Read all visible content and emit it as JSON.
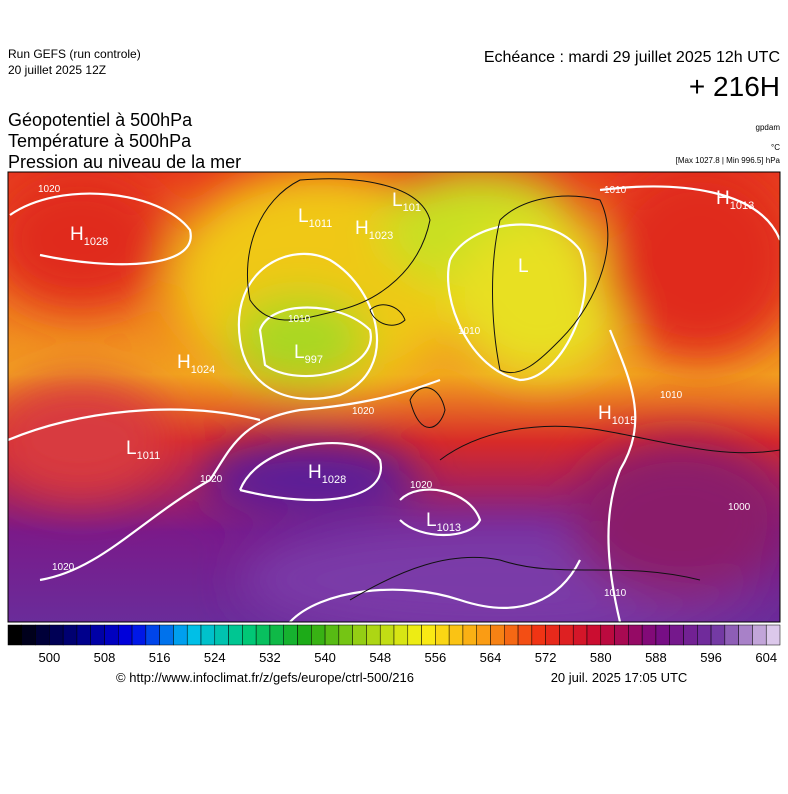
{
  "header": {
    "run": "Run GEFS (run controle)",
    "run_date": "20 juillet 2025 12Z",
    "valid": "Echéance : mardi 29 juillet 2025 12h UTC",
    "lead": "+ 216H"
  },
  "titles": [
    "Géopotentiel à 500hPa",
    "Température à 500hPa",
    "Pression au niveau de la mer"
  ],
  "units": {
    "geopotential": "gpdam",
    "temperature": "°C",
    "pressure": "[Max 1027.8 | Min 996.5] hPa"
  },
  "centers": [
    {
      "letter": "H",
      "value": "1028"
    },
    {
      "letter": "L",
      "value": "1011"
    },
    {
      "letter": "H",
      "value": "1023"
    },
    {
      "letter": "L",
      "value": "101"
    },
    {
      "letter": "L",
      "value": "997"
    },
    {
      "letter": "H",
      "value": "1024"
    },
    {
      "letter": "L",
      "value": "1011"
    },
    {
      "letter": "H",
      "value": "1028"
    },
    {
      "letter": "L",
      "value": "1013"
    },
    {
      "letter": "H",
      "value": "1015"
    },
    {
      "letter": "H",
      "value": "1013"
    },
    {
      "letter": "L"
    }
  ],
  "isobar_labels": [
    "1020",
    "1010",
    "1010",
    "1010",
    "1020",
    "1020",
    "1020",
    "1010",
    "1010",
    "1020",
    "1000"
  ],
  "colorbar": {
    "ticks": [
      500,
      508,
      516,
      524,
      532,
      540,
      548,
      556,
      564,
      572,
      580,
      588,
      596,
      604
    ]
  },
  "footer": {
    "source": "© http://www.infoclimat.fr/z/gefs/europe/ctrl-500/216",
    "generated": "20 juil. 2025 17:05 UTC"
  }
}
